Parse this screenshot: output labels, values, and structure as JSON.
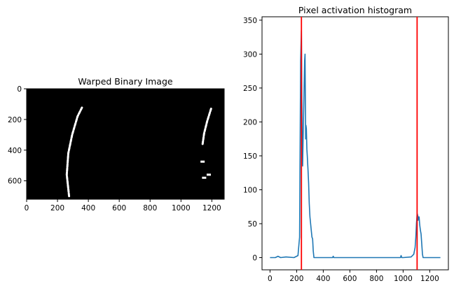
{
  "chart_data": [
    {
      "type": "image",
      "title": "Warped Binary Image",
      "xlim": [
        0,
        1280
      ],
      "ylim": [
        720,
        0
      ],
      "xticks": [
        0,
        200,
        400,
        600,
        800,
        1000,
        1200
      ],
      "xtick_labels": [
        "0",
        "200",
        "400",
        "600",
        "800",
        "1000",
        "1200"
      ],
      "yticks": [
        0,
        200,
        400,
        600
      ],
      "ytick_labels": [
        "0",
        "200",
        "400",
        "600"
      ],
      "background_color": "#000000",
      "pixel_color": "#ffffff",
      "left_lane_polyline": [
        [
          275,
          700
        ],
        [
          260,
          560
        ],
        [
          270,
          420
        ],
        [
          295,
          300
        ],
        [
          330,
          180
        ],
        [
          360,
          120
        ]
      ],
      "right_lane_polyline": [
        [
          1195,
          130
        ],
        [
          1170,
          210
        ],
        [
          1150,
          290
        ],
        [
          1140,
          360
        ]
      ],
      "right_lane_bottom_blobs": [
        [
          1140,
          475
        ],
        [
          1180,
          560
        ],
        [
          1150,
          580
        ]
      ]
    },
    {
      "type": "line",
      "title": "Pixel activation histogram",
      "xlim": [
        -60,
        1340
      ],
      "ylim": [
        -18,
        355
      ],
      "xticks": [
        0,
        200,
        400,
        600,
        800,
        1000,
        1200
      ],
      "xtick_labels": [
        "0",
        "200",
        "400",
        "600",
        "800",
        "1000",
        "1200"
      ],
      "yticks": [
        0,
        50,
        100,
        150,
        200,
        250,
        300,
        350
      ],
      "ytick_labels": [
        "0",
        "50",
        "100",
        "150",
        "200",
        "250",
        "300",
        "350"
      ],
      "series": [
        {
          "color": "#1f77b4",
          "x": [
            0,
            40,
            60,
            80,
            120,
            180,
            210,
            222,
            230,
            236,
            240,
            242,
            245,
            250,
            255,
            260,
            263,
            265,
            268,
            270,
            273,
            277,
            280,
            285,
            290,
            295,
            300,
            310,
            315,
            320,
            325,
            330,
            340,
            400,
            470,
            475,
            480,
            600,
            800,
            900,
            980,
            985,
            990,
            1000,
            1060,
            1080,
            1090,
            1095,
            1100,
            1105,
            1110,
            1112,
            1115,
            1120,
            1125,
            1130,
            1135,
            1140,
            1145,
            1150,
            1280
          ],
          "y": [
            0,
            0,
            2,
            0,
            1,
            0,
            3,
            30,
            290,
            335,
            220,
            150,
            135,
            190,
            240,
            290,
            300,
            240,
            175,
            195,
            190,
            160,
            150,
            130,
            110,
            80,
            60,
            40,
            30,
            28,
            10,
            0,
            0,
            0,
            0,
            2,
            0,
            0,
            0,
            0,
            0,
            3,
            0,
            0,
            1,
            5,
            15,
            30,
            50,
            65,
            62,
            55,
            60,
            60,
            48,
            40,
            35,
            20,
            5,
            0,
            0
          ]
        }
      ],
      "vlines": [
        {
          "x": 236,
          "color": "#ff0000"
        },
        {
          "x": 1105,
          "color": "#ff0000"
        }
      ]
    }
  ]
}
